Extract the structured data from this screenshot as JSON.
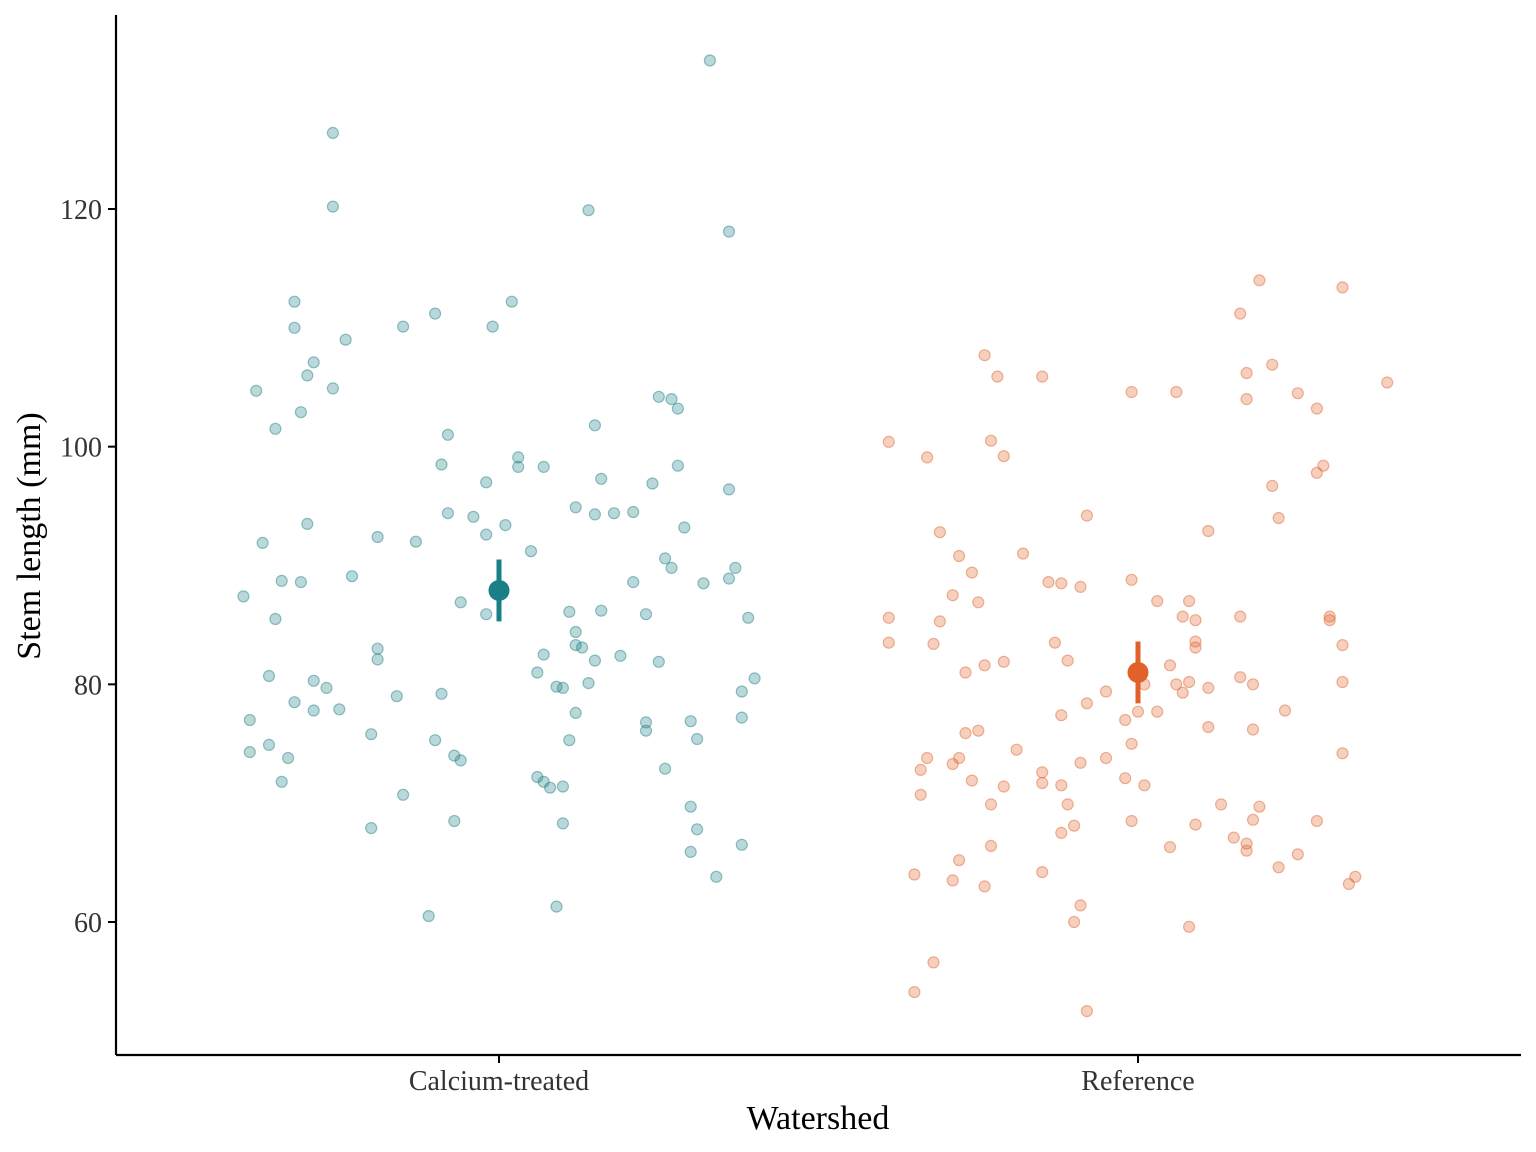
{
  "chart_data": {
    "type": "scatter",
    "title": "",
    "xlabel": "Watershed",
    "ylabel": "Stem length (mm)",
    "categories": [
      "Calcium-treated",
      "Reference"
    ],
    "ylim": [
      49,
      137
    ],
    "yticks": [
      60,
      80,
      100,
      120
    ],
    "grid": false,
    "legend": "none",
    "colors": {
      "Calcium-treated": "#1a7f86",
      "Reference": "#e0622a"
    },
    "summary": [
      {
        "category": "Calcium-treated",
        "mean": 87.9,
        "low": 85.3,
        "high": 90.5
      },
      {
        "category": "Reference",
        "mean": 81.0,
        "low": 78.4,
        "high": 83.6
      }
    ],
    "series": [
      {
        "category": "Calcium-treated",
        "points": [
          [
            -0.4,
            87.4
          ],
          [
            -0.39,
            77.0
          ],
          [
            -0.39,
            74.3
          ],
          [
            -0.38,
            104.7
          ],
          [
            -0.37,
            91.9
          ],
          [
            -0.36,
            80.7
          ],
          [
            -0.36,
            74.9
          ],
          [
            -0.35,
            85.5
          ],
          [
            -0.35,
            101.5
          ],
          [
            -0.34,
            88.7
          ],
          [
            -0.34,
            71.8
          ],
          [
            -0.33,
            73.8
          ],
          [
            -0.32,
            78.5
          ],
          [
            -0.32,
            112.2
          ],
          [
            -0.32,
            110.0
          ],
          [
            -0.31,
            88.6
          ],
          [
            -0.31,
            102.9
          ],
          [
            -0.3,
            93.5
          ],
          [
            -0.3,
            106.0
          ],
          [
            -0.29,
            107.1
          ],
          [
            -0.29,
            80.3
          ],
          [
            -0.29,
            77.8
          ],
          [
            -0.27,
            79.7
          ],
          [
            -0.26,
            126.4
          ],
          [
            -0.26,
            120.2
          ],
          [
            -0.26,
            104.9
          ],
          [
            -0.25,
            77.9
          ],
          [
            -0.24,
            109.0
          ],
          [
            -0.23,
            89.1
          ],
          [
            -0.2,
            67.9
          ],
          [
            -0.2,
            75.8
          ],
          [
            -0.19,
            92.4
          ],
          [
            -0.19,
            83.0
          ],
          [
            -0.19,
            82.1
          ],
          [
            -0.16,
            79.0
          ],
          [
            -0.15,
            70.7
          ],
          [
            -0.15,
            110.1
          ],
          [
            -0.13,
            92.0
          ],
          [
            -0.11,
            60.5
          ],
          [
            -0.1,
            75.3
          ],
          [
            -0.1,
            111.2
          ],
          [
            -0.09,
            98.5
          ],
          [
            -0.09,
            79.2
          ],
          [
            -0.08,
            101.0
          ],
          [
            -0.08,
            94.4
          ],
          [
            -0.07,
            74.0
          ],
          [
            -0.07,
            68.5
          ],
          [
            -0.06,
            73.6
          ],
          [
            -0.06,
            86.9
          ],
          [
            -0.04,
            94.1
          ],
          [
            -0.02,
            97.0
          ],
          [
            -0.02,
            92.6
          ],
          [
            -0.02,
            85.9
          ],
          [
            -0.01,
            110.1
          ],
          [
            0.01,
            93.4
          ],
          [
            0.02,
            112.2
          ],
          [
            0.03,
            99.1
          ],
          [
            0.03,
            98.3
          ],
          [
            0.05,
            91.2
          ],
          [
            0.06,
            81.0
          ],
          [
            0.06,
            72.2
          ],
          [
            0.07,
            71.8
          ],
          [
            0.07,
            82.5
          ],
          [
            0.07,
            98.3
          ],
          [
            0.08,
            71.3
          ],
          [
            0.09,
            61.3
          ],
          [
            0.09,
            79.8
          ],
          [
            0.1,
            79.7
          ],
          [
            0.1,
            71.4
          ],
          [
            0.1,
            68.3
          ],
          [
            0.11,
            86.1
          ],
          [
            0.11,
            75.3
          ],
          [
            0.12,
            84.4
          ],
          [
            0.12,
            83.3
          ],
          [
            0.12,
            77.6
          ],
          [
            0.12,
            94.9
          ],
          [
            0.13,
            83.1
          ],
          [
            0.14,
            119.9
          ],
          [
            0.14,
            80.1
          ],
          [
            0.15,
            82.0
          ],
          [
            0.15,
            94.3
          ],
          [
            0.15,
            101.8
          ],
          [
            0.16,
            97.3
          ],
          [
            0.16,
            86.2
          ],
          [
            0.18,
            94.4
          ],
          [
            0.19,
            82.4
          ],
          [
            0.21,
            94.5
          ],
          [
            0.21,
            88.6
          ],
          [
            0.23,
            76.8
          ],
          [
            0.23,
            76.1
          ],
          [
            0.23,
            85.9
          ],
          [
            0.24,
            96.9
          ],
          [
            0.25,
            104.2
          ],
          [
            0.25,
            81.9
          ],
          [
            0.26,
            72.9
          ],
          [
            0.26,
            90.6
          ],
          [
            0.27,
            104.0
          ],
          [
            0.27,
            89.8
          ],
          [
            0.28,
            98.4
          ],
          [
            0.28,
            103.2
          ],
          [
            0.29,
            93.2
          ],
          [
            0.3,
            69.7
          ],
          [
            0.3,
            76.9
          ],
          [
            0.31,
            75.4
          ],
          [
            0.31,
            67.8
          ],
          [
            0.3,
            65.9
          ],
          [
            0.32,
            88.5
          ],
          [
            0.34,
            63.8
          ],
          [
            0.36,
            96.4
          ],
          [
            0.36,
            88.9
          ],
          [
            0.36,
            118.1
          ],
          [
            0.37,
            89.8
          ],
          [
            0.38,
            66.5
          ],
          [
            0.38,
            79.4
          ],
          [
            0.38,
            77.2
          ],
          [
            0.39,
            85.6
          ],
          [
            0.4,
            80.5
          ],
          [
            0.33,
            132.5
          ]
        ]
      },
      {
        "category": "Reference",
        "points": [
          [
            -0.39,
            100.4
          ],
          [
            -0.39,
            85.6
          ],
          [
            -0.39,
            83.5
          ],
          [
            -0.35,
            64.0
          ],
          [
            -0.35,
            54.1
          ],
          [
            -0.34,
            72.8
          ],
          [
            -0.34,
            70.7
          ],
          [
            -0.33,
            73.8
          ],
          [
            -0.33,
            99.1
          ],
          [
            -0.32,
            56.6
          ],
          [
            -0.32,
            83.4
          ],
          [
            -0.31,
            85.3
          ],
          [
            -0.31,
            92.8
          ],
          [
            -0.29,
            63.5
          ],
          [
            -0.29,
            73.3
          ],
          [
            -0.29,
            87.5
          ],
          [
            -0.28,
            65.2
          ],
          [
            -0.28,
            90.8
          ],
          [
            -0.28,
            73.8
          ],
          [
            -0.27,
            81.0
          ],
          [
            -0.27,
            75.9
          ],
          [
            -0.26,
            71.9
          ],
          [
            -0.26,
            89.4
          ],
          [
            -0.25,
            76.1
          ],
          [
            -0.25,
            86.9
          ],
          [
            -0.24,
            107.7
          ],
          [
            -0.24,
            63.0
          ],
          [
            -0.24,
            81.6
          ],
          [
            -0.23,
            69.9
          ],
          [
            -0.23,
            66.4
          ],
          [
            -0.23,
            100.5
          ],
          [
            -0.22,
            105.9
          ],
          [
            -0.21,
            99.2
          ],
          [
            -0.21,
            81.9
          ],
          [
            -0.21,
            71.4
          ],
          [
            -0.19,
            74.5
          ],
          [
            -0.18,
            91.0
          ],
          [
            -0.15,
            105.9
          ],
          [
            -0.15,
            72.6
          ],
          [
            -0.15,
            71.7
          ],
          [
            -0.15,
            64.2
          ],
          [
            -0.14,
            88.6
          ],
          [
            -0.13,
            83.5
          ],
          [
            -0.12,
            77.4
          ],
          [
            -0.12,
            88.5
          ],
          [
            -0.12,
            71.5
          ],
          [
            -0.12,
            67.5
          ],
          [
            -0.11,
            82.0
          ],
          [
            -0.11,
            69.9
          ],
          [
            -0.1,
            68.1
          ],
          [
            -0.1,
            60.0
          ],
          [
            -0.09,
            88.2
          ],
          [
            -0.09,
            73.4
          ],
          [
            -0.09,
            61.4
          ],
          [
            -0.08,
            94.2
          ],
          [
            -0.08,
            78.4
          ],
          [
            -0.08,
            52.5
          ],
          [
            -0.05,
            79.4
          ],
          [
            -0.05,
            73.8
          ],
          [
            -0.02,
            72.1
          ],
          [
            -0.02,
            77.0
          ],
          [
            -0.01,
            75.0
          ],
          [
            -0.01,
            88.8
          ],
          [
            -0.01,
            104.6
          ],
          [
            -0.01,
            68.5
          ],
          [
            0.0,
            77.7
          ],
          [
            0.01,
            71.5
          ],
          [
            0.01,
            80.0
          ],
          [
            0.03,
            87.0
          ],
          [
            0.03,
            77.7
          ],
          [
            0.05,
            66.3
          ],
          [
            0.05,
            81.6
          ],
          [
            0.06,
            80.0
          ],
          [
            0.06,
            104.6
          ],
          [
            0.07,
            85.7
          ],
          [
            0.07,
            79.3
          ],
          [
            0.08,
            87.0
          ],
          [
            0.08,
            80.2
          ],
          [
            0.08,
            59.6
          ],
          [
            0.09,
            85.4
          ],
          [
            0.09,
            83.6
          ],
          [
            0.09,
            83.1
          ],
          [
            0.09,
            68.2
          ],
          [
            0.11,
            92.9
          ],
          [
            0.11,
            76.4
          ],
          [
            0.11,
            79.7
          ],
          [
            0.13,
            69.9
          ],
          [
            0.15,
            67.1
          ],
          [
            0.16,
            85.7
          ],
          [
            0.16,
            111.2
          ],
          [
            0.16,
            80.6
          ],
          [
            0.17,
            106.2
          ],
          [
            0.17,
            104.0
          ],
          [
            0.17,
            66.0
          ],
          [
            0.17,
            66.6
          ],
          [
            0.18,
            68.6
          ],
          [
            0.18,
            80.0
          ],
          [
            0.18,
            76.2
          ],
          [
            0.19,
            114.0
          ],
          [
            0.19,
            69.7
          ],
          [
            0.21,
            96.7
          ],
          [
            0.21,
            106.9
          ],
          [
            0.22,
            94.0
          ],
          [
            0.22,
            64.6
          ],
          [
            0.23,
            77.8
          ],
          [
            0.25,
            104.5
          ],
          [
            0.25,
            65.7
          ],
          [
            0.28,
            103.2
          ],
          [
            0.28,
            68.5
          ],
          [
            0.28,
            97.8
          ],
          [
            0.29,
            98.4
          ],
          [
            0.3,
            85.7
          ],
          [
            0.3,
            85.4
          ],
          [
            0.32,
            113.4
          ],
          [
            0.32,
            80.2
          ],
          [
            0.32,
            83.3
          ],
          [
            0.33,
            63.2
          ],
          [
            0.34,
            63.8
          ],
          [
            0.39,
            105.4
          ],
          [
            0.32,
            74.2
          ]
        ]
      }
    ]
  }
}
